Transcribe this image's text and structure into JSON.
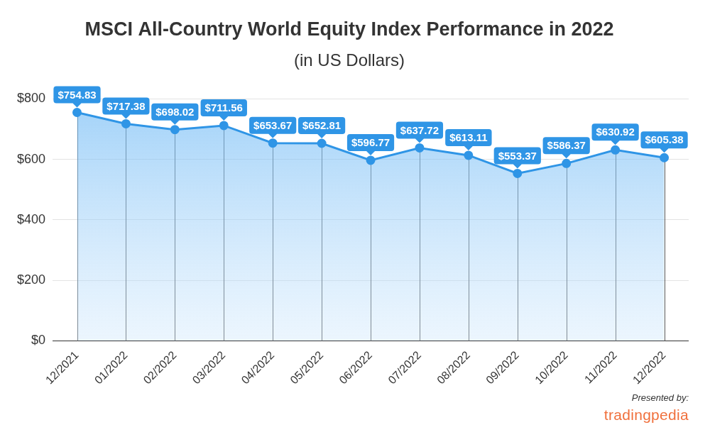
{
  "chart_data": {
    "type": "area",
    "title": "MSCI All-Country World Equity Index Performance in 2022",
    "subtitle": "(in US Dollars)",
    "categories": [
      "12/2021",
      "01/2022",
      "02/2022",
      "03/2022",
      "04/2022",
      "05/2022",
      "06/2022",
      "07/2022",
      "08/2022",
      "09/2022",
      "10/2022",
      "11/2022",
      "12/2022"
    ],
    "values": [
      754.83,
      717.38,
      698.02,
      711.56,
      653.67,
      652.81,
      596.77,
      637.72,
      613.11,
      553.37,
      586.37,
      630.92,
      605.38
    ],
    "value_labels": [
      "$754.83",
      "$717.38",
      "$698.02",
      "$711.56",
      "$653.67",
      "$652.81",
      "$596.77",
      "$637.72",
      "$613.11",
      "$553.37",
      "$586.37",
      "$630.92",
      "$605.38"
    ],
    "color": "#2f95e6",
    "ylim": [
      0,
      800
    ],
    "yticks": [
      {
        "value": 0,
        "label": "$0"
      },
      {
        "value": 200,
        "label": "$200"
      },
      {
        "value": 400,
        "label": "$400"
      },
      {
        "value": 600,
        "label": "$600"
      },
      {
        "value": 800,
        "label": "$800"
      }
    ],
    "grid": true,
    "data_labels": true,
    "marker": "circle",
    "annotations": [
      "Presented by:",
      "tradingpedia"
    ]
  }
}
